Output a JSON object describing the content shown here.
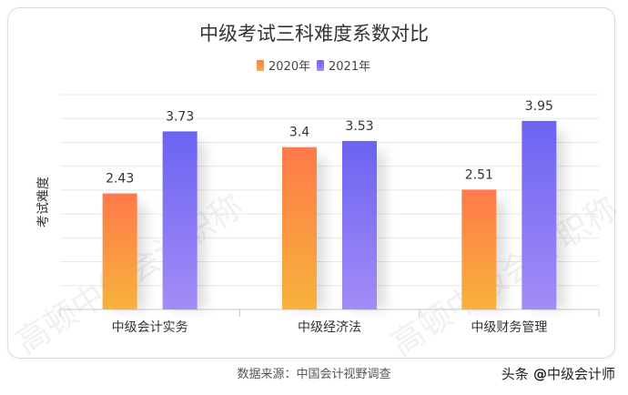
{
  "chart_data": {
    "type": "bar",
    "title": "中级考试三科难度系数对比",
    "ylabel": "考试难度",
    "xlabel": "",
    "categories": [
      "中级会计实务",
      "中级经济法",
      "中级财务管理"
    ],
    "series": [
      {
        "name": "2020年",
        "values": [
          2.43,
          3.4,
          2.51
        ],
        "labels": [
          "2.43",
          "3.4",
          "2.51"
        ],
        "color_top": "#ff7a4a",
        "color_bottom": "#f7b23b"
      },
      {
        "name": "2021年",
        "values": [
          3.73,
          3.53,
          3.95
        ],
        "labels": [
          "3.73",
          "3.53",
          "3.95"
        ],
        "color_top": "#6b63f2",
        "color_bottom": "#a48cf7"
      }
    ],
    "ylim": [
      0,
      4.5
    ],
    "grid": true,
    "legend": "top-center"
  },
  "watermark": "高顿中级会计职称",
  "footer": {
    "source": "数据来源：中国会计视野调查",
    "brand_prefix": "头条",
    "brand_at": " @",
    "brand_name": "中级会计师"
  }
}
